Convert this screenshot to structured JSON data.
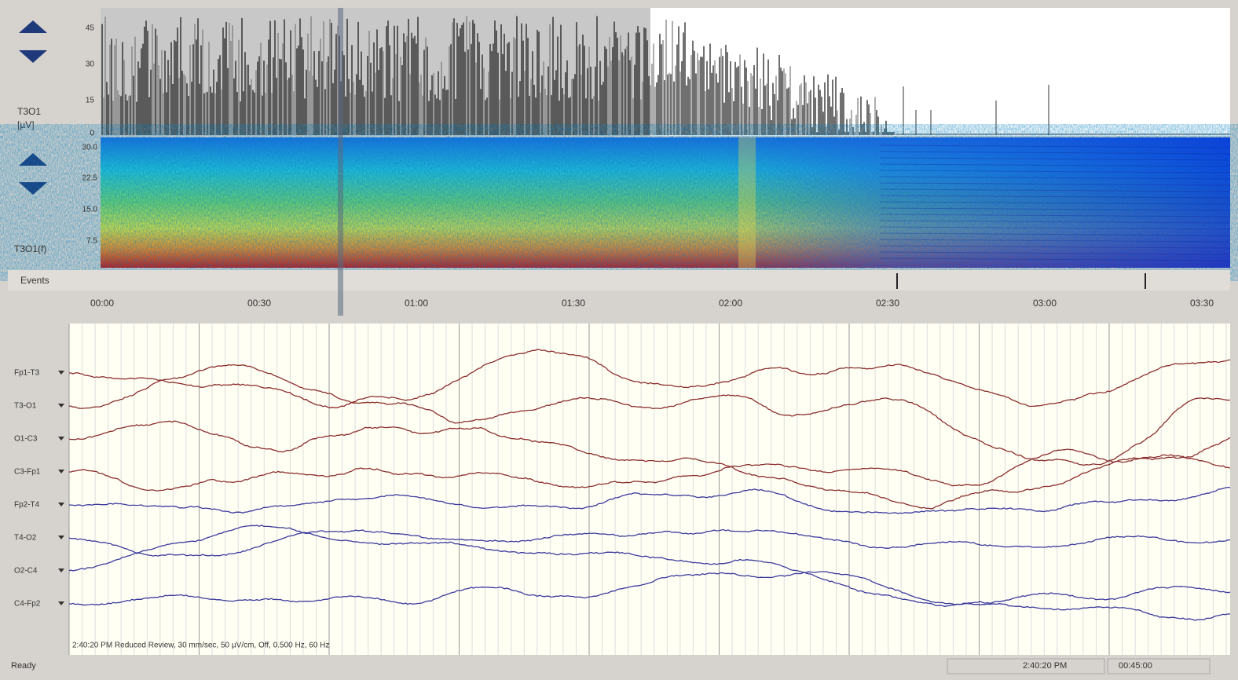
{
  "amplitude_panel": {
    "channel_label": "T3O1",
    "unit_label": "[µV]",
    "scale_labels": [
      "45",
      "30",
      "15",
      "0"
    ]
  },
  "spectrogram_panel": {
    "channel_label": "T3O1(f)",
    "scale_labels": [
      "30.0",
      "22.5",
      "15.0",
      "7.5"
    ]
  },
  "events_row": {
    "label": "Events"
  },
  "time_axis": {
    "labels": [
      "00:00",
      "00:30",
      "01:00",
      "01:30",
      "02:00",
      "02:30",
      "03:00",
      "03:30"
    ]
  },
  "eeg_panel": {
    "channels": [
      "Fp1-T3",
      "T3-O1",
      "O1-C3",
      "C3-Fp1",
      "Fp2-T4",
      "T4-O2",
      "O2-C4",
      "C4-Fp2"
    ],
    "annotation": "2:40:20 PM Reduced Review, 30 mm/sec, 50 µV/cm, Off, 0.500 Hz, 60 Hz"
  },
  "status_bar": {
    "state": "Ready",
    "clock": "2:40:20 PM",
    "elapsed": "00:45:00"
  }
}
